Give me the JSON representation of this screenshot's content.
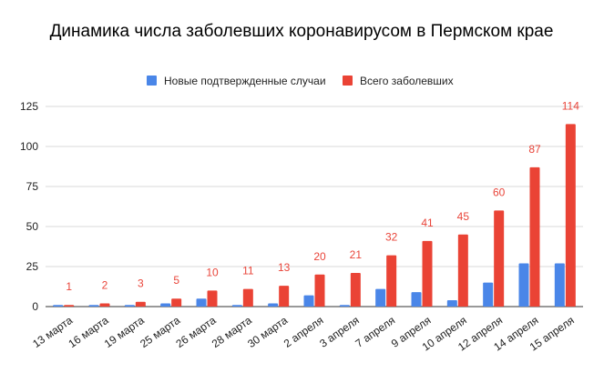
{
  "chart_data": {
    "type": "bar",
    "title": "Динамика числа заболевших коронавирусом в Пермском крае",
    "xlabel": "",
    "ylabel": "",
    "ylim": [
      0,
      125
    ],
    "yticks": [
      0,
      25,
      50,
      75,
      100,
      125
    ],
    "grid": true,
    "legend_position": "top",
    "categories": [
      "13 марта",
      "16 марта",
      "19 марта",
      "25 марта",
      "26 марта",
      "28 марта",
      "30 марта",
      "2 апреля",
      "3 апреля",
      "7 апреля",
      "9 апреля",
      "10 апреля",
      "12 апреля",
      "14 апреля",
      "15 апреля"
    ],
    "series": [
      {
        "name": "Новые подтвержденные случаи",
        "color": "#4a86e8",
        "values": [
          1,
          1,
          1,
          2,
          5,
          1,
          2,
          7,
          1,
          11,
          9,
          4,
          15,
          27,
          27
        ]
      },
      {
        "name": "Всего заболевших",
        "color": "#ea4335",
        "values": [
          1,
          2,
          3,
          5,
          10,
          11,
          13,
          20,
          21,
          32,
          41,
          45,
          60,
          87,
          114
        ],
        "data_labels": true
      }
    ]
  }
}
